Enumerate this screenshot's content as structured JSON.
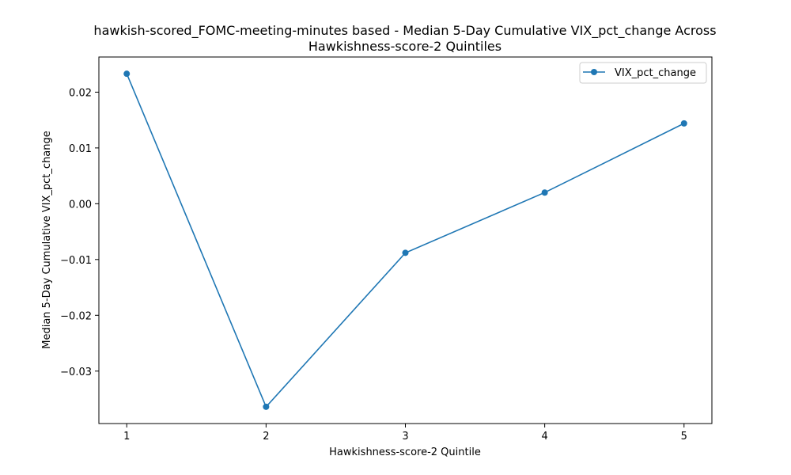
{
  "chart_data": {
    "type": "line",
    "title_lines": [
      "hawkish-scored_FOMC-meeting-minutes based - Median 5-Day Cumulative VIX_pct_change Across",
      "Hawkishness-score-2 Quintiles"
    ],
    "xlabel": "Hawkishness-score-2 Quintile",
    "ylabel": "Median 5-Day Cumulative VIX_pct_change",
    "x": [
      1,
      2,
      3,
      4,
      5
    ],
    "x_ticks": [
      "1",
      "2",
      "3",
      "4",
      "5"
    ],
    "xlim": [
      0.8,
      5.2
    ],
    "y_ticks": [
      "0.02",
      "0.01",
      "0.00",
      "−0.01",
      "−0.02",
      "−0.03"
    ],
    "y_tick_values": [
      0.02,
      0.01,
      0.0,
      -0.01,
      -0.02,
      -0.03
    ],
    "ylim": [
      -0.0394,
      0.0263
    ],
    "series": [
      {
        "name": "VIX_pct_change",
        "values": [
          0.0233,
          -0.0364,
          -0.0088,
          0.002,
          0.0144
        ],
        "color": "#1f77b4",
        "marker": "circle"
      }
    ],
    "legend": {
      "placement": "top-right",
      "entries": [
        "VIX_pct_change"
      ]
    },
    "grid": false
  }
}
